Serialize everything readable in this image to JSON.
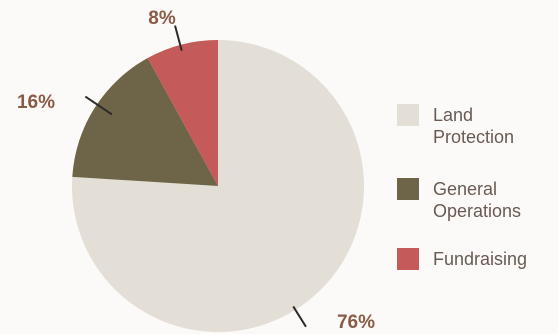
{
  "chart_data": {
    "type": "pie",
    "title": "",
    "slices": [
      {
        "label": "Land Protection",
        "value": 76,
        "color": "#e3dfd7"
      },
      {
        "label": "General Operations",
        "value": 16,
        "color": "#6e6548"
      },
      {
        "label": "Fundraising",
        "value": 8,
        "color": "#c55a5a"
      }
    ],
    "data_labels": [
      "76%",
      "16%",
      "8%"
    ],
    "legend_position": "right"
  },
  "legend": {
    "items": [
      {
        "line1": "Land",
        "line2": "Protection"
      },
      {
        "line1": "General",
        "line2": "Operations"
      },
      {
        "line1": "Fundraising",
        "line2": ""
      }
    ]
  }
}
